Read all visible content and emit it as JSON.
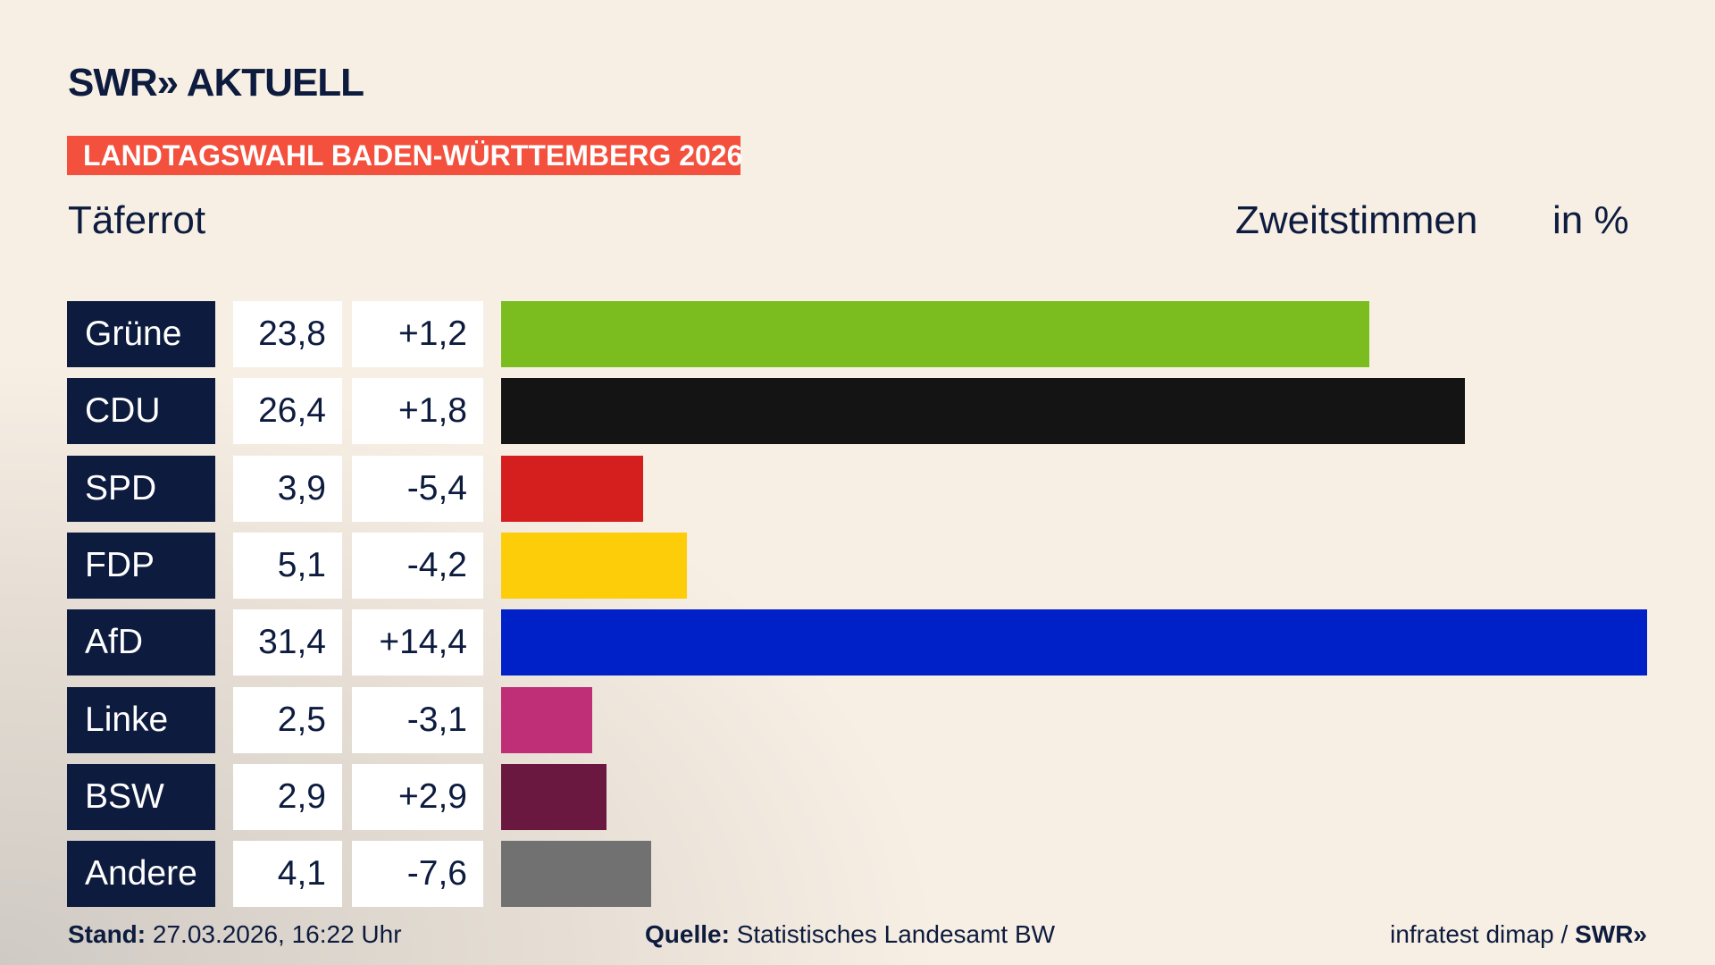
{
  "chart_data": {
    "type": "bar",
    "brand": "SWR",
    "brand_section": "AKTUELL",
    "banner": "LANDTAGSWAHL BADEN-WÜRTTEMBERG 2026",
    "title": "Täferrot",
    "subtitle": "Zweitstimmen",
    "unit": "in %",
    "categories": [
      "Grüne",
      "CDU",
      "SPD",
      "FDP",
      "AfD",
      "Linke",
      "BSW",
      "Andere"
    ],
    "values": [
      23.8,
      26.4,
      3.9,
      5.1,
      31.4,
      2.5,
      2.9,
      4.1
    ],
    "value_labels": [
      "23,8",
      "26,4",
      "3,9",
      "5,1",
      "31,4",
      "2,5",
      "2,9",
      "4,1"
    ],
    "changes": [
      "+1,2",
      "+1,8",
      "-5,4",
      "-4,2",
      "+14,4",
      "-3,1",
      "+2,9",
      "-7,6"
    ],
    "colors": [
      "#7bbd1e",
      "#141414",
      "#d51f1f",
      "#fdcd0a",
      "#0020c8",
      "#be2f78",
      "#6b1840",
      "#717172"
    ],
    "footer": {
      "stand_label": "Stand:",
      "stand": "27.03.2026, 16:22 Uhr",
      "source_label": "Quelle:",
      "source": "Statistisches Landesamt BW",
      "credit": "infratest dimap /",
      "credit_brand": "SWR"
    }
  }
}
